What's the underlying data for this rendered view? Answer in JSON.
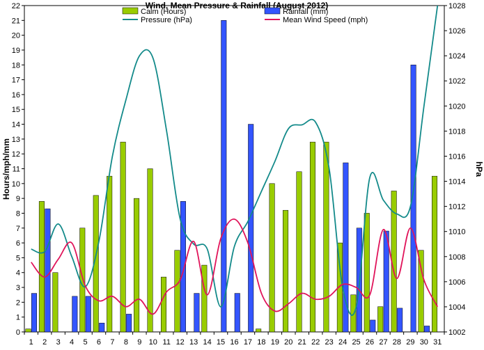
{
  "chart_data": {
    "type": "bar",
    "title": "Wind, Mean Pressure & Rainfall (August 2012)",
    "ylabel_left": "Hours/mph/mm",
    "ylabel_right": "hPa",
    "xlabel": "",
    "ylim_left": [
      0,
      22
    ],
    "ylim_right": [
      1002,
      1028
    ],
    "grid": false,
    "legend_position": "top-center",
    "categories": [
      "1",
      "2",
      "3",
      "4",
      "5",
      "6",
      "7",
      "8",
      "9",
      "10",
      "11",
      "12",
      "13",
      "14",
      "15",
      "16",
      "17",
      "18",
      "19",
      "20",
      "21",
      "22",
      "23",
      "24",
      "25",
      "26",
      "27",
      "28",
      "29",
      "30",
      "31"
    ],
    "left_ticks": [
      "0",
      "1",
      "2",
      "3",
      "4",
      "5",
      "6",
      "7",
      "8",
      "9",
      "10",
      "11",
      "12",
      "13",
      "14",
      "15",
      "16",
      "17",
      "18",
      "19",
      "20",
      "21",
      "22"
    ],
    "right_ticks": [
      "1002",
      "1004",
      "1006",
      "1008",
      "1010",
      "1012",
      "1014",
      "1016",
      "1018",
      "1020",
      "1022",
      "1024",
      "1026",
      "1028"
    ],
    "series": [
      {
        "name": "Calm (Hours)",
        "type": "bar",
        "axis": "left",
        "color": "#99cc00",
        "values": [
          0.2,
          8.8,
          4.0,
          0,
          7.0,
          9.2,
          10.5,
          12.8,
          9.0,
          11.0,
          3.7,
          5.5,
          0,
          4.5,
          0,
          0,
          0,
          0.2,
          10.0,
          8.2,
          10.8,
          12.8,
          12.8,
          6.0,
          2.5,
          8.0,
          1.7,
          9.5,
          0,
          5.5,
          10.5
        ]
      },
      {
        "name": "Rainfall (mm)",
        "type": "bar",
        "axis": "left",
        "color": "#3355ff",
        "values": [
          2.6,
          8.3,
          0,
          2.4,
          2.4,
          0.6,
          0,
          1.2,
          0,
          0,
          0,
          8.8,
          2.6,
          0,
          21.0,
          2.6,
          14.0,
          0,
          0,
          0,
          0,
          0,
          0,
          11.4,
          7.0,
          0.8,
          6.8,
          1.6,
          18.0,
          0.4,
          0
        ]
      },
      {
        "name": "Pressure (hPa)",
        "type": "line",
        "axis": "right",
        "color": "#138a8a",
        "values": [
          1008.6,
          1008.4,
          1010.6,
          1008.0,
          1005.6,
          1009.2,
          1016.0,
          1020.5,
          1024.0,
          1023.8,
          1018.0,
          1011.0,
          1009.0,
          1008.6,
          1004.0,
          1008.8,
          1010.8,
          1013.2,
          1015.6,
          1018.2,
          1018.5,
          1018.7,
          1015.0,
          1005.5,
          1004.0,
          1014.3,
          1012.5,
          1011.4,
          1012.0,
          1020.0,
          1028.0
        ]
      },
      {
        "name": "Mean Wind Speed (mph)",
        "type": "line",
        "axis": "left",
        "color": "#e0145a",
        "values": [
          4.7,
          3.7,
          4.9,
          6.0,
          3.1,
          2.1,
          2.4,
          1.7,
          2.2,
          1.2,
          2.7,
          3.5,
          6.1,
          2.5,
          6.3,
          7.6,
          6.0,
          2.6,
          1.4,
          1.9,
          2.6,
          2.2,
          2.4,
          3.2,
          3.0,
          2.5,
          6.9,
          3.6,
          7.0,
          3.5,
          1.7
        ]
      }
    ]
  }
}
